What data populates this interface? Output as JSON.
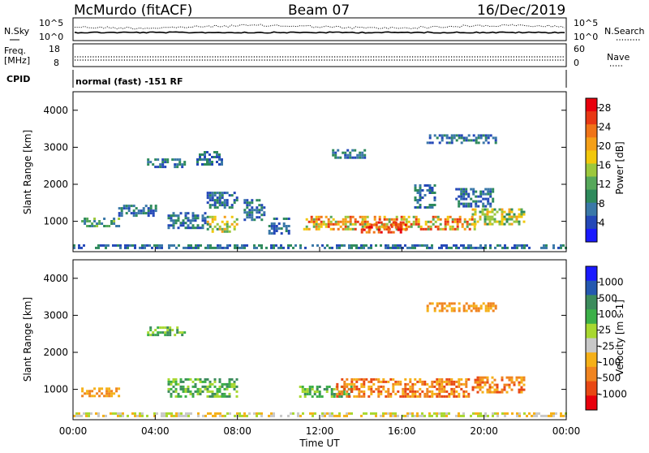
{
  "header": {
    "station": "McMurdo (fitACF)",
    "beam": "Beam 07",
    "date": "16/Dec/2019"
  },
  "noise_panel": {
    "left_label": "N.Sky",
    "right_label": "N.Search",
    "ticks_left": [
      "10^5",
      "10^0"
    ],
    "ticks_right": [
      "10^5",
      "10^0"
    ]
  },
  "freq_panel": {
    "left_label_1": "Freq.",
    "left_label_2": "[MHz]",
    "ticks_left": [
      "18",
      "8"
    ],
    "right_label": "Nave",
    "ticks_right": [
      "60",
      "0"
    ]
  },
  "cpid": {
    "label": "CPID",
    "value": "normal (fast) -151 RF"
  },
  "colors": {
    "power": [
      "#1a1aff",
      "#2448b8",
      "#3a78a8",
      "#2e8a5c",
      "#56a85a",
      "#9cc83c",
      "#f2c80c",
      "#f5a018",
      "#f07418",
      "#e83814",
      "#e8000c"
    ],
    "velocity": [
      "#e8000c",
      "#e84814",
      "#f08420",
      "#f5b018",
      "#c8c8c8",
      "#a8d830",
      "#3cb048",
      "#3c8c5c",
      "#2458b0",
      "#1a1aff"
    ]
  },
  "chart_data": [
    {
      "type": "heatmap",
      "title": "",
      "xlabel": "Time UT",
      "ylabel": "Slant Range [km]",
      "x_ticks": [
        "00:00",
        "04:00",
        "08:00",
        "12:00",
        "16:00",
        "20:00",
        "00:00"
      ],
      "y_ticks": [
        1000,
        2000,
        3000,
        4000
      ],
      "ylim": [
        180,
        4500
      ],
      "xlim_hours": [
        0,
        24
      ],
      "colorbar": {
        "label": "Power [dB]",
        "ticks": [
          4,
          8,
          12,
          16,
          20,
          24,
          28
        ],
        "range": [
          0,
          30
        ]
      },
      "echo_regions": [
        {
          "t": [
            0.0,
            24.0
          ],
          "r": [
            250,
            380
          ],
          "level": "low"
        },
        {
          "t": [
            0.4,
            2.2
          ],
          "r": [
            900,
            1100
          ],
          "level": "low-mid"
        },
        {
          "t": [
            2.2,
            4.0
          ],
          "r": [
            1150,
            1450
          ],
          "level": "low"
        },
        {
          "t": [
            4.6,
            6.4
          ],
          "r": [
            850,
            1250
          ],
          "level": "low"
        },
        {
          "t": [
            6.5,
            8.0
          ],
          "r": [
            750,
            1150
          ],
          "level": "mid"
        },
        {
          "t": [
            6.5,
            8.0
          ],
          "r": [
            1400,
            1800
          ],
          "level": "low"
        },
        {
          "t": [
            8.3,
            9.3
          ],
          "r": [
            1050,
            1600
          ],
          "level": "low"
        },
        {
          "t": [
            9.5,
            10.5
          ],
          "r": [
            700,
            1100
          ],
          "level": "low"
        },
        {
          "t": [
            11.2,
            19.6
          ],
          "r": [
            780,
            1150
          ],
          "level": "high"
        },
        {
          "t": [
            14.0,
            16.2
          ],
          "r": [
            700,
            1000
          ],
          "level": "peak"
        },
        {
          "t": [
            16.6,
            17.6
          ],
          "r": [
            1400,
            2000
          ],
          "level": "low"
        },
        {
          "t": [
            19.4,
            22.0
          ],
          "r": [
            950,
            1350
          ],
          "level": "mid"
        },
        {
          "t": [
            18.6,
            20.4
          ],
          "r": [
            1400,
            1900
          ],
          "level": "low"
        },
        {
          "t": [
            17.2,
            20.6
          ],
          "r": [
            3150,
            3350
          ],
          "level": "low"
        },
        {
          "t": [
            3.6,
            5.4
          ],
          "r": [
            2450,
            2700
          ],
          "level": "low"
        },
        {
          "t": [
            6.0,
            7.2
          ],
          "r": [
            2550,
            2900
          ],
          "level": "low"
        },
        {
          "t": [
            12.6,
            14.2
          ],
          "r": [
            2700,
            2950
          ],
          "level": "low"
        }
      ]
    },
    {
      "type": "heatmap",
      "title": "",
      "xlabel": "Time UT",
      "ylabel": "Slant Range [km]",
      "x_ticks": [
        "00:00",
        "04:00",
        "08:00",
        "12:00",
        "16:00",
        "20:00",
        "00:00"
      ],
      "y_ticks": [
        1000,
        2000,
        3000,
        4000
      ],
      "ylim": [
        180,
        4500
      ],
      "xlim_hours": [
        0,
        24
      ],
      "colorbar": {
        "label": "Velocity [m s-1]",
        "ticks": [
          -1000,
          -500,
          -100,
          -25,
          25,
          100,
          500,
          1000
        ]
      },
      "echo_regions": [
        {
          "t": [
            0.0,
            24.0
          ],
          "r": [
            250,
            380
          ],
          "value": "ground"
        },
        {
          "t": [
            0.4,
            2.2
          ],
          "r": [
            850,
            1050
          ],
          "value": "-100"
        },
        {
          "t": [
            4.6,
            8.0
          ],
          "r": [
            800,
            1300
          ],
          "value": "100"
        },
        {
          "t": [
            11.0,
            13.5
          ],
          "r": [
            800,
            1100
          ],
          "value": "100"
        },
        {
          "t": [
            12.8,
            19.2
          ],
          "r": [
            780,
            1300
          ],
          "value": "-500"
        },
        {
          "t": [
            19.4,
            22.0
          ],
          "r": [
            900,
            1350
          ],
          "value": "-500"
        },
        {
          "t": [
            17.2,
            20.6
          ],
          "r": [
            3150,
            3350
          ],
          "value": "-100"
        },
        {
          "t": [
            3.6,
            5.4
          ],
          "r": [
            2450,
            2700
          ],
          "value": "100"
        }
      ]
    }
  ]
}
